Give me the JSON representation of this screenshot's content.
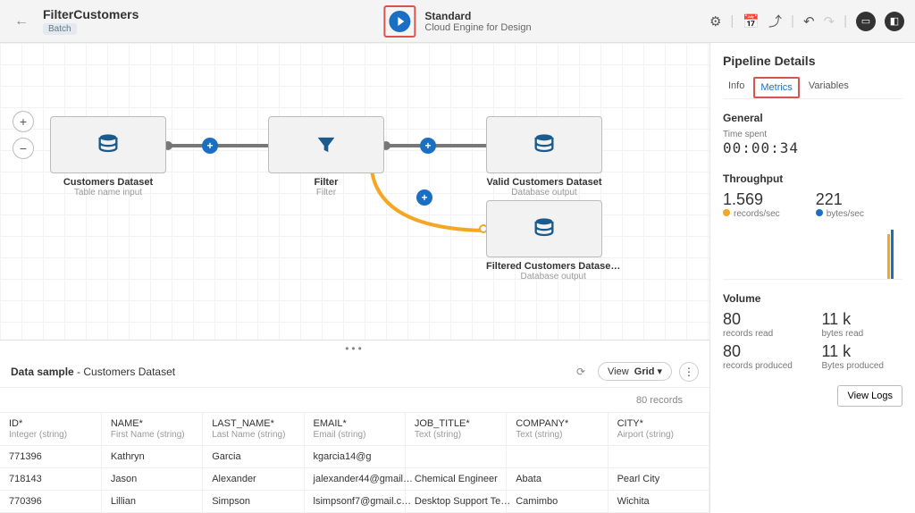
{
  "header": {
    "title": "FilterCustomers",
    "tag": "Batch",
    "engine_title": "Standard",
    "engine_sub": "Cloud Engine for Design"
  },
  "nodes": {
    "source": {
      "label": "Customers Dataset",
      "sub": "Table name input"
    },
    "filter": {
      "label": "Filter",
      "sub": "Filter"
    },
    "valid": {
      "label": "Valid Customers Dataset",
      "sub": "Database output"
    },
    "filtered": {
      "label": "Filtered Customers Datase…",
      "sub": "Database output"
    }
  },
  "sample": {
    "title_prefix": "Data sample",
    "title_suffix": "Customers Dataset",
    "view_label": "View",
    "view_mode": "Grid",
    "record_count": "80 records"
  },
  "columns": [
    {
      "name": "ID*",
      "type": "Integer (string)"
    },
    {
      "name": "NAME*",
      "type": "First Name (string)"
    },
    {
      "name": "LAST_NAME*",
      "type": "Last Name (string)"
    },
    {
      "name": "EMAIL*",
      "type": "Email (string)"
    },
    {
      "name": "JOB_TITLE*",
      "type": "Text (string)"
    },
    {
      "name": "COMPANY*",
      "type": "Text (string)"
    },
    {
      "name": "CITY*",
      "type": "Airport (string)"
    }
  ],
  "rows": [
    [
      "771396",
      "Kathryn",
      "Garcia",
      "kgarcia14@g",
      "",
      "",
      ""
    ],
    [
      "718143",
      "Jason",
      "Alexander",
      "jalexander44@gmail…",
      "Chemical Engineer",
      "Abata",
      "Pearl City"
    ],
    [
      "770396",
      "Lillian",
      "Simpson",
      "lsimpsonf7@gmail.c…",
      "Desktop Support Te…",
      "Camimbo",
      "Wichita"
    ]
  ],
  "details": {
    "heading": "Pipeline Details",
    "tabs": {
      "info": "Info",
      "metrics": "Metrics",
      "variables": "Variables"
    },
    "general_h": "General",
    "time_label": "Time spent",
    "time_value": "00:00:34",
    "throughput_h": "Throughput",
    "rec_sec": "1.569",
    "rec_sec_label": "records/sec",
    "bytes_sec": "221",
    "bytes_sec_label": "bytes/sec",
    "volume_h": "Volume",
    "rec_read": "80",
    "rec_read_label": "records read",
    "bytes_read": "11 k",
    "bytes_read_label": "bytes read",
    "rec_prod": "80",
    "rec_prod_label": "records produced",
    "bytes_prod": "11 k",
    "bytes_prod_label": "Bytes produced",
    "view_logs": "View Logs"
  },
  "colors": {
    "accent": "#1b6fc2",
    "highlight": "#d9534f",
    "yellow": "#f5a623"
  }
}
